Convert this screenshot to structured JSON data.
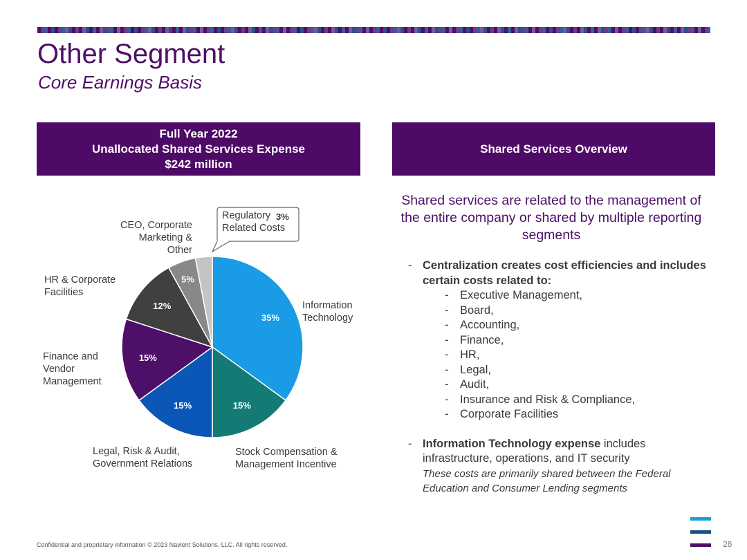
{
  "title": "Other Segment",
  "subtitle": "Core Earnings Basis",
  "left_header": {
    "line1": "Full Year 2022",
    "line2": "Unallocated Shared Services Expense",
    "line3": "$242 million"
  },
  "right_header": {
    "label": "Shared Services Overview"
  },
  "chart_data": {
    "type": "pie",
    "title": "",
    "slices": [
      {
        "label": "Information Technology",
        "label_lines": [
          "Information",
          "Technology"
        ],
        "value": 35,
        "value_label": "35%",
        "color": "#1a9be6"
      },
      {
        "label": "Stock Compensation & Management Incentive",
        "label_lines": [
          "Stock Compensation &",
          "Management Incentive"
        ],
        "value": 15,
        "value_label": "15%",
        "color": "#137b73"
      },
      {
        "label": "Legal, Risk & Audit, Government Relations",
        "label_lines": [
          "Legal, Risk & Audit,",
          "Government Relations"
        ],
        "value": 15,
        "value_label": "15%",
        "color": "#0b57b8"
      },
      {
        "label": "Finance and Vendor Management",
        "label_lines": [
          "Finance and",
          "Vendor",
          "Management"
        ],
        "value": 15,
        "value_label": "15%",
        "color": "#4e0f68"
      },
      {
        "label": "HR & Corporate Facilities",
        "label_lines": [
          "HR & Corporate",
          "Facilities"
        ],
        "value": 12,
        "value_label": "12%",
        "color": "#404040"
      },
      {
        "label": "CEO, Corporate Marketing & Other",
        "label_lines": [
          "CEO, Corporate",
          "Marketing &",
          "Other"
        ],
        "value": 5,
        "value_label": "5%",
        "color": "#888888"
      },
      {
        "label": "Regulatory Related Costs",
        "label_lines": [
          "Regulatory",
          "Related Costs"
        ],
        "value": 3,
        "value_label": "3%",
        "color": "#c4c4c4"
      }
    ]
  },
  "intro_text": "Shared services are related to the management of the entire company or shared by multiple reporting segments",
  "bullet1": {
    "dash": "-",
    "bold_text": "Centralization creates cost efficiencies and includes certain costs related to:",
    "sub_items": [
      "Executive Management,",
      "Board,",
      "Accounting,",
      "Finance,",
      "HR,",
      "Legal,",
      "Audit,",
      "Insurance and Risk & Compliance,",
      "Corporate Facilities"
    ]
  },
  "bullet2": {
    "dash": "-",
    "bold_text": "Information Technology expense",
    "rest_text": " includes infrastructure, operations, and IT security",
    "italic_text": "These costs are primarily shared between the Federal Education and Consumer Lending segments"
  },
  "footer": "Confidential and proprietary information  © 2023 Navient Solutions, LLC. All rights reserved.",
  "page_number": "28",
  "colors": {
    "brand_purple": "#4e0a67",
    "logo_top": "#1aa0d6",
    "logo_mid": "#1b4f7d",
    "logo_bottom": "#4e0f68"
  }
}
